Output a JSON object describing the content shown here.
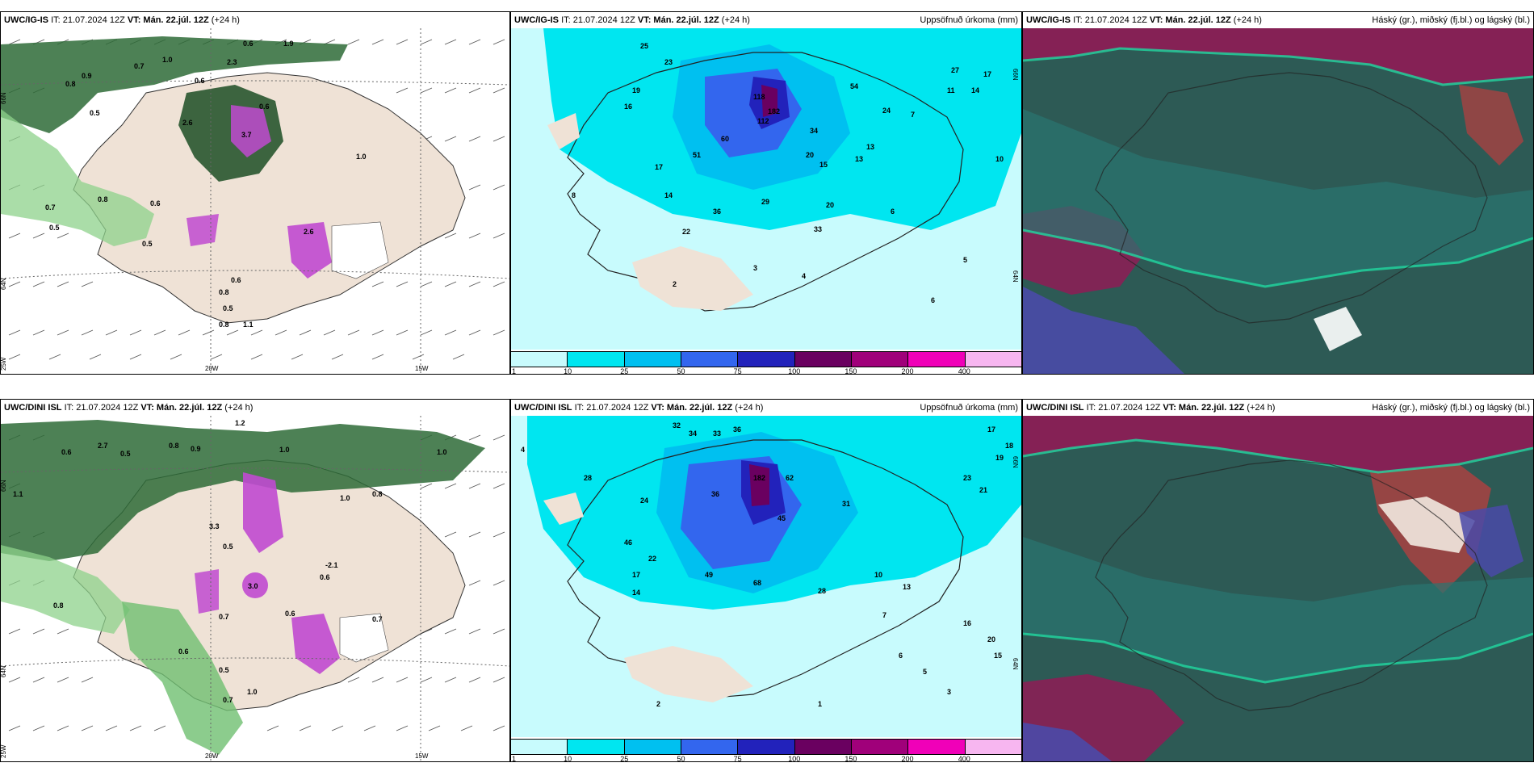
{
  "panels": {
    "top_left": {
      "model": "UWC/IG-IS",
      "it": "IT: 21.07.2024 12Z",
      "vt": "VT: Mán. 22.júl. 12Z",
      "lead": "(+24 h)",
      "lat_labels": [
        "66N",
        "64N",
        "25W"
      ],
      "lon_labels": [
        "20W",
        "15W"
      ],
      "values": [
        "0.9",
        "0.5",
        "2.6",
        "0.7",
        "0.6",
        "1.0",
        "0.8",
        "1.9",
        "0.6",
        "2.3",
        "0.6",
        "1.0",
        "0.5",
        "0.8",
        "0.7",
        "0.6",
        "0.5",
        "0.8",
        "1.1",
        "0.8",
        "0.5",
        "0.6",
        "2.6",
        "3.7"
      ]
    },
    "top_mid": {
      "model": "UWC/IG-IS",
      "it": "IT: 21.07.2024 12Z",
      "vt": "VT: Mán. 22.júl. 12Z",
      "lead": "(+24 h)",
      "title_right": "Uppsöfnuð úrkoma (mm)",
      "lat_labels": [
        "66N",
        "64N"
      ],
      "values": [
        "25",
        "23",
        "16",
        "19",
        "60",
        "118",
        "112",
        "182",
        "51",
        "34",
        "20",
        "15",
        "17",
        "14",
        "13",
        "29",
        "22",
        "36",
        "20",
        "33",
        "6",
        "7",
        "4",
        "3",
        "2",
        "11",
        "5",
        "8",
        "24",
        "13",
        "54",
        "27",
        "17",
        "14",
        "10",
        "6"
      ]
    },
    "top_right": {
      "model": "UWC/IG-IS",
      "it": "IT: 21.07.2024 12Z",
      "vt": "VT: Mán. 22.júl. 12Z",
      "lead": "(+24 h)",
      "title_right": "Háský (gr.), miðský (fj.bl.) og lágský (bl.)"
    },
    "bottom_left": {
      "model": "UWC/DINI ISL",
      "it": "IT: 21.07.2024 12Z",
      "vt": "VT: Mán. 22.júl. 12Z",
      "lead": "(+24 h)",
      "lat_labels": [
        "66N",
        "64N",
        "25W"
      ],
      "lon_labels": [
        "20W",
        "15W"
      ],
      "values": [
        "1.2",
        "0.6",
        "2.7",
        "0.5",
        "0.8",
        "0.9",
        "1.0",
        "1.1",
        "3.3",
        "1.0",
        "0.8",
        "0.7",
        "0.5",
        "3.0",
        "0.7",
        "0.6",
        "-2.1",
        "0.6",
        "0.8",
        "1.0",
        "0.7",
        "0.5",
        "0.6",
        "1.0"
      ]
    },
    "bottom_mid": {
      "model": "UWC/DINI ISL",
      "it": "IT: 21.07.2024 12Z",
      "vt": "VT: Mán. 22.júl. 12Z",
      "lead": "(+24 h)",
      "title_right": "Uppsöfnuð úrkoma (mm)",
      "lat_labels": [
        "66N",
        "64N"
      ],
      "values": [
        "4",
        "32",
        "34",
        "33",
        "36",
        "28",
        "24",
        "46",
        "36",
        "182",
        "62",
        "45",
        "31",
        "22",
        "17",
        "20",
        "10",
        "16",
        "15",
        "13",
        "68",
        "28",
        "49",
        "14",
        "7",
        "6",
        "5",
        "3",
        "2",
        "1",
        "23",
        "21",
        "19",
        "18",
        "17"
      ]
    },
    "bottom_right": {
      "model": "UWC/DINI ISL",
      "it": "IT: 21.07.2024 12Z",
      "vt": "VT: Mán. 22.júl. 12Z",
      "lead": "(+24 h)",
      "title_right": "Háský (gr.), miðský (fj.bl.) og lágský (bl.)"
    }
  },
  "precip_legend": {
    "labels": [
      "1",
      "10",
      "25",
      "50",
      "75",
      "100",
      "150",
      "200",
      "400"
    ],
    "colors": [
      "#c8fbfd",
      "#00e6f0",
      "#00c0f0",
      "#3366ee",
      "#2222bb",
      "#6a0060",
      "#a0007a",
      "#f000b8",
      "#f7b6f0"
    ]
  },
  "colors": {
    "land": "#efe2d6",
    "sea_precip": "#c8fbfd",
    "cloud_base": "#2d5a55",
    "cloud_high": "#8a1f55",
    "cloud_low": "#4a4aa8"
  }
}
